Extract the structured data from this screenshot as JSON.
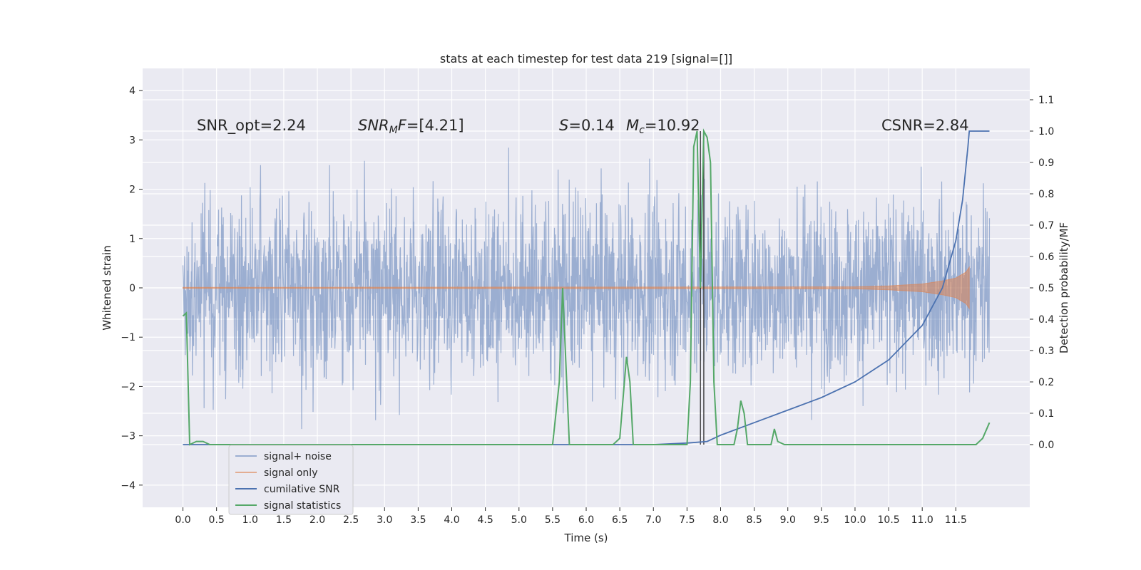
{
  "chart_data": {
    "type": "line",
    "title": "stats at each timestep for test data 219 [signal=[]]",
    "xlabel": "Time (s)",
    "ylabel_left": "Whitened strain",
    "ylabel_right": "Detection probability/MF",
    "xlim": [
      -0.6,
      12.6
    ],
    "ylim_left": [
      -4.45,
      4.45
    ],
    "ylim_right": [
      -0.2,
      1.2
    ],
    "x_ticks": [
      "0.0",
      "0.5",
      "1.0",
      "1.5",
      "2.0",
      "2.5",
      "3.0",
      "3.5",
      "4.0",
      "4.5",
      "5.0",
      "5.5",
      "6.0",
      "6.5",
      "7.0",
      "7.5",
      "8.0",
      "8.5",
      "9.0",
      "9.5",
      "10.0",
      "10.5",
      "11.0",
      "11.5"
    ],
    "y_left_ticks": [
      4,
      3,
      2,
      1,
      0,
      -1,
      -2,
      -3,
      -4
    ],
    "y_left_tick_labels": [
      "4",
      "3",
      "2",
      "1",
      "0",
      "−1",
      "−2",
      "−3",
      "−4"
    ],
    "y_right_ticks": [
      "1.1",
      "1.0",
      "0.9",
      "0.8",
      "0.7",
      "0.6",
      "0.5",
      "0.4",
      "0.3",
      "0.2",
      "0.1",
      "0.0"
    ],
    "grid": true,
    "legend_position": "lower-left",
    "colors": {
      "background": "#eaeaf2",
      "noise": "#4c72b0",
      "signal": "#dd8452",
      "csnr": "#4c72b0",
      "stats": "#55a868",
      "vline": "#333333"
    },
    "annotations": [
      {
        "text": "SNR_opt=2.24",
        "x": 0.2,
        "y": 3.15
      },
      {
        "text": "SNR_MF=[4.21]",
        "x": 2.6,
        "y": 3.15
      },
      {
        "text": "S=0.14",
        "x": 5.6,
        "y": 3.15
      },
      {
        "text": "Mc=10.92",
        "x": 6.6,
        "y": 3.15
      },
      {
        "text": "CSNR=2.84",
        "x": 10.4,
        "y": 3.15
      }
    ],
    "series": [
      {
        "name": "signal+ noise",
        "axis": "left",
        "description_range": [
          -1.4,
          1.9
        ],
        "x_range": [
          0.0,
          12.0
        ]
      },
      {
        "name": "signal only",
        "axis": "left",
        "x": [
          0.0,
          10.0,
          10.5,
          11.0,
          11.3,
          11.5,
          11.65,
          11.7
        ],
        "envelope": [
          0.01,
          0.02,
          0.04,
          0.08,
          0.14,
          0.2,
          0.32,
          0.42
        ]
      },
      {
        "name": "cumilative SNR",
        "axis": "right",
        "x": [
          0.0,
          6.5,
          7.0,
          7.5,
          7.8,
          8.0,
          8.5,
          9.0,
          9.5,
          10.0,
          10.5,
          11.0,
          11.3,
          11.5,
          11.6,
          11.68,
          11.7,
          12.0
        ],
        "y": [
          0.0,
          0.0,
          0.0,
          0.005,
          0.01,
          0.03,
          0.07,
          0.11,
          0.15,
          0.2,
          0.27,
          0.38,
          0.5,
          0.65,
          0.78,
          0.95,
          1.0,
          1.0
        ]
      },
      {
        "name": "signal statistics",
        "axis": "right",
        "x": [
          0.0,
          0.05,
          0.1,
          0.2,
          0.3,
          0.4,
          0.5,
          5.5,
          5.6,
          5.65,
          5.7,
          5.75,
          5.85,
          6.4,
          6.5,
          6.6,
          6.65,
          6.7,
          6.75,
          6.85,
          7.5,
          7.55,
          7.6,
          7.65,
          7.7,
          7.75,
          7.8,
          7.85,
          7.9,
          7.95,
          8.05,
          8.2,
          8.25,
          8.3,
          8.35,
          8.4,
          8.45,
          8.55,
          8.7,
          8.75,
          8.8,
          8.85,
          8.95,
          11.7,
          11.8,
          11.9,
          12.0
        ],
        "y": [
          0.41,
          0.42,
          0.0,
          0.01,
          0.01,
          0.0,
          0.0,
          0.0,
          0.2,
          0.5,
          0.25,
          0.0,
          0.0,
          0.0,
          0.02,
          0.28,
          0.2,
          0.0,
          0.0,
          0.0,
          0.0,
          0.2,
          0.95,
          1.0,
          0.5,
          1.0,
          0.98,
          0.9,
          0.2,
          0.0,
          0.0,
          0.0,
          0.05,
          0.14,
          0.1,
          0.0,
          0.0,
          0.0,
          0.0,
          0.0,
          0.05,
          0.01,
          0.0,
          0.0,
          0.0,
          0.02,
          0.07
        ]
      }
    ],
    "vlines": [
      7.7,
      7.75
    ]
  }
}
